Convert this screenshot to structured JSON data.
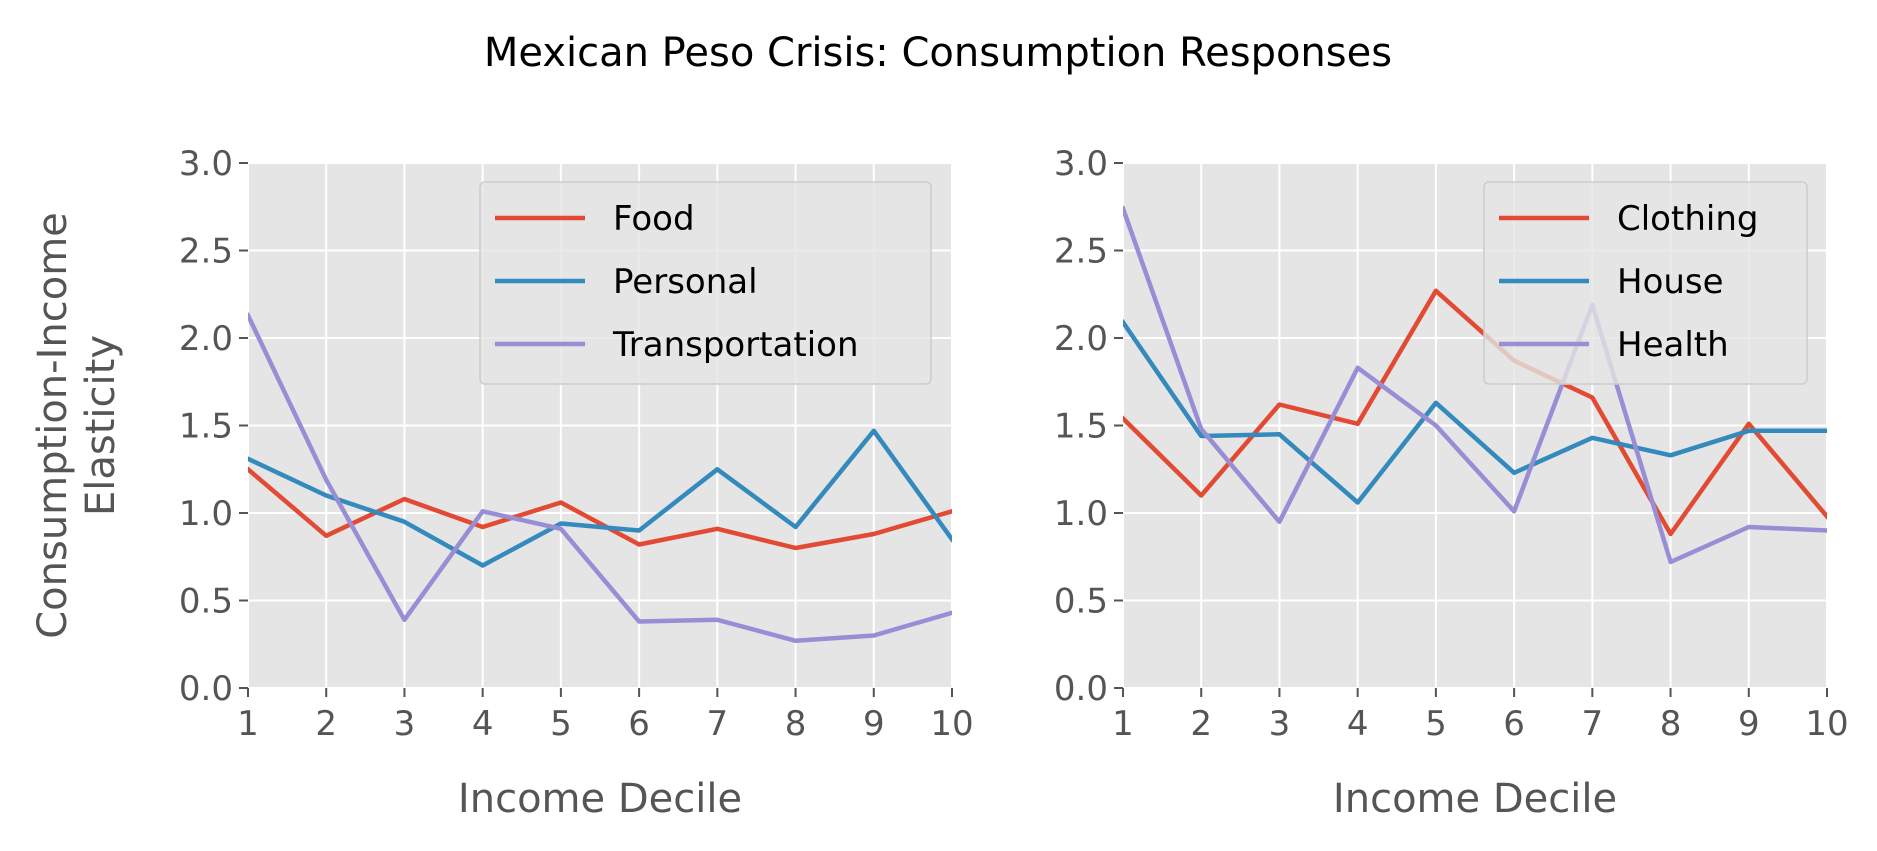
{
  "figure": {
    "title": "Mexican Peso Crisis: Consumption Responses"
  },
  "colors": {
    "red": "#E24A33",
    "blue": "#348ABD",
    "purple": "#988ED5",
    "panel_bg": "#E5E5E5",
    "grid": "#FFFFFF",
    "text": "#555555"
  },
  "chart_data": [
    {
      "type": "line",
      "title": "",
      "xlabel": "Income Decile",
      "ylabel": [
        "Consumption-Income",
        "Elasticity"
      ],
      "xlim": [
        1,
        10
      ],
      "ylim": [
        0,
        3
      ],
      "x": [
        1,
        2,
        3,
        4,
        5,
        6,
        7,
        8,
        9,
        10
      ],
      "x_ticks": [
        "1",
        "2",
        "3",
        "4",
        "5",
        "6",
        "7",
        "8",
        "9",
        "10"
      ],
      "y_ticks": [
        "0.0",
        "0.5",
        "1.0",
        "1.5",
        "2.0",
        "2.5",
        "3.0"
      ],
      "grid": true,
      "legend_position": "top-right",
      "series": [
        {
          "name": "Food",
          "color": "#E24A33",
          "values": [
            1.25,
            0.87,
            1.08,
            0.92,
            1.06,
            0.82,
            0.91,
            0.8,
            0.88,
            1.01
          ]
        },
        {
          "name": "Personal",
          "color": "#348ABD",
          "values": [
            1.31,
            1.1,
            0.95,
            0.7,
            0.94,
            0.9,
            1.25,
            0.92,
            1.47,
            0.85
          ]
        },
        {
          "name": "Transportation",
          "color": "#988ED5",
          "values": [
            2.13,
            1.19,
            0.39,
            1.01,
            0.91,
            0.38,
            0.39,
            0.27,
            0.3,
            0.43
          ]
        }
      ]
    },
    {
      "type": "line",
      "title": "",
      "xlabel": "Income Decile",
      "ylabel": [],
      "xlim": [
        1,
        10
      ],
      "ylim": [
        0,
        3
      ],
      "x": [
        1,
        2,
        3,
        4,
        5,
        6,
        7,
        8,
        9,
        10
      ],
      "x_ticks": [
        "1",
        "2",
        "3",
        "4",
        "5",
        "6",
        "7",
        "8",
        "9",
        "10"
      ],
      "y_ticks": [
        "0.0",
        "0.5",
        "1.0",
        "1.5",
        "2.0",
        "2.5",
        "3.0"
      ],
      "grid": true,
      "legend_position": "top-right",
      "series": [
        {
          "name": "Clothing",
          "color": "#E24A33",
          "values": [
            1.54,
            1.1,
            1.62,
            1.51,
            2.27,
            1.87,
            1.66,
            0.88,
            1.51,
            0.98
          ]
        },
        {
          "name": "House",
          "color": "#348ABD",
          "values": [
            2.09,
            1.44,
            1.45,
            1.06,
            1.63,
            1.23,
            1.43,
            1.33,
            1.47,
            1.47
          ]
        },
        {
          "name": "Health",
          "color": "#988ED5",
          "values": [
            2.74,
            1.48,
            0.95,
            1.83,
            1.5,
            1.01,
            2.19,
            0.72,
            0.92,
            0.9
          ]
        }
      ]
    }
  ]
}
